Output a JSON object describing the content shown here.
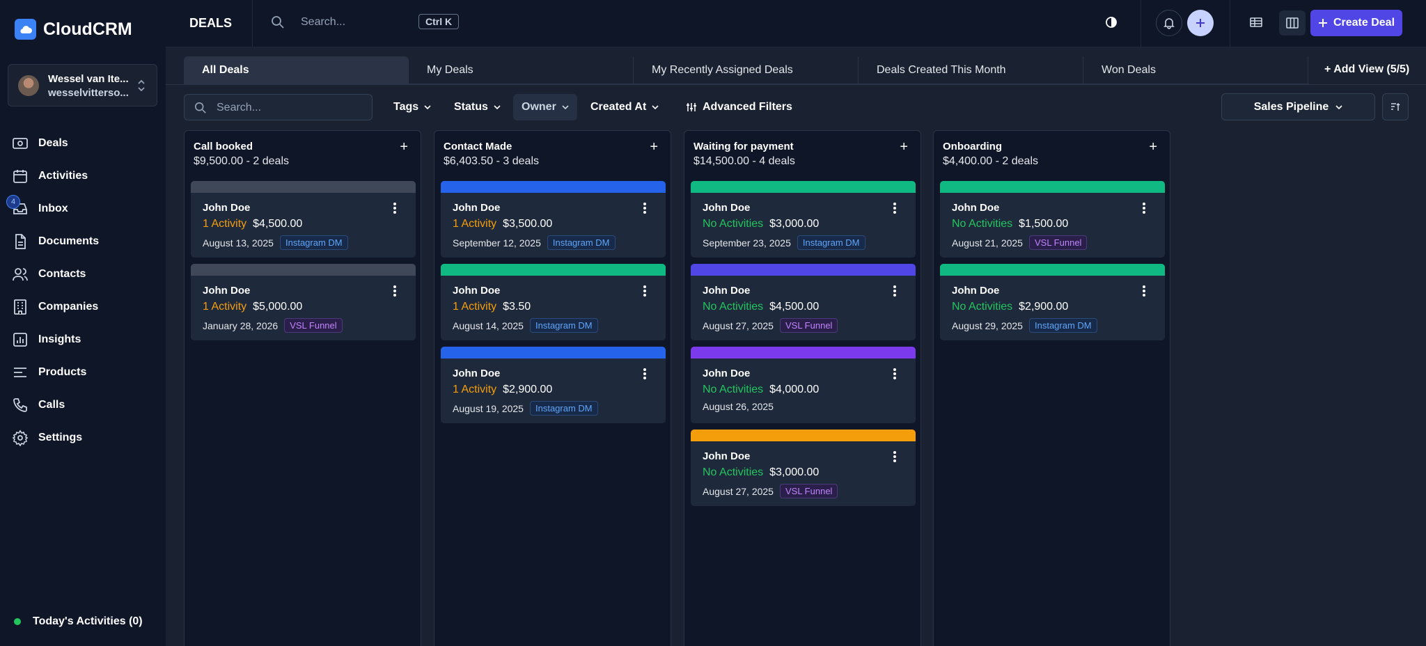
{
  "app": {
    "name": "CloudCRM"
  },
  "user": {
    "name": "Wessel van Ite...",
    "email": "wesselvitterso..."
  },
  "nav": [
    {
      "label": "Deals",
      "icon": "deals-icon"
    },
    {
      "label": "Activities",
      "icon": "calendar-icon"
    },
    {
      "label": "Inbox",
      "icon": "inbox-icon",
      "badge": "4"
    },
    {
      "label": "Documents",
      "icon": "document-icon"
    },
    {
      "label": "Contacts",
      "icon": "contacts-icon"
    },
    {
      "label": "Companies",
      "icon": "building-icon"
    },
    {
      "label": "Insights",
      "icon": "chart-icon"
    },
    {
      "label": "Products",
      "icon": "list-icon"
    },
    {
      "label": "Calls",
      "icon": "phone-icon"
    },
    {
      "label": "Settings",
      "icon": "gear-icon"
    }
  ],
  "today": {
    "label": "Today's Activities (0)"
  },
  "header": {
    "title": "DEALS",
    "search_placeholder": "Search...",
    "shortcut": "Ctrl K",
    "create_label": "Create Deal"
  },
  "tabs": [
    "All Deals",
    "My Deals",
    "My Recently Assigned Deals",
    "Deals Created This Month",
    "Won Deals"
  ],
  "add_view": "+ Add View (5/5)",
  "filters": {
    "search_placeholder": "Search...",
    "tags": "Tags",
    "status": "Status",
    "owner": "Owner",
    "created_at": "Created At",
    "advanced": "Advanced Filters",
    "pipeline": "Sales Pipeline"
  },
  "colors": {
    "accent": "#4f46e5",
    "blue": "#2563eb",
    "green": "#10b981",
    "indigo": "#4f46e5",
    "purple": "#7c3aed",
    "amber": "#f59e0b",
    "gray": "#3f4858"
  },
  "columns": [
    {
      "title": "Call booked",
      "summary": "$9,500.00 - 2 deals",
      "cards": [
        {
          "name": "John Doe",
          "activity": "1 Activity",
          "activity_type": "orange",
          "amount": "$4,500.00",
          "date": "August 13, 2025",
          "tag": "Instagram DM",
          "tag_type": "insta",
          "bar": "#3f4858"
        },
        {
          "name": "John Doe",
          "activity": "1 Activity",
          "activity_type": "orange",
          "amount": "$5,000.00",
          "date": "January 28, 2026",
          "tag": "VSL Funnel",
          "tag_type": "vsl",
          "bar": "#3f4858"
        }
      ]
    },
    {
      "title": "Contact Made",
      "summary": "$6,403.50 - 3 deals",
      "cards": [
        {
          "name": "John Doe",
          "activity": "1 Activity",
          "activity_type": "orange",
          "amount": "$3,500.00",
          "date": "September 12, 2025",
          "tag": "Instagram DM",
          "tag_type": "insta",
          "bar": "#2563eb"
        },
        {
          "name": "John Doe",
          "activity": "1 Activity",
          "activity_type": "orange",
          "amount": "$3.50",
          "date": "August 14, 2025",
          "tag": "Instagram DM",
          "tag_type": "insta",
          "bar": "#10b981"
        },
        {
          "name": "John Doe",
          "activity": "1 Activity",
          "activity_type": "orange",
          "amount": "$2,900.00",
          "date": "August 19, 2025",
          "tag": "Instagram DM",
          "tag_type": "insta",
          "bar": "#2563eb"
        }
      ]
    },
    {
      "title": "Waiting for payment",
      "summary": "$14,500.00 - 4 deals",
      "cards": [
        {
          "name": "John Doe",
          "activity": "No Activities",
          "activity_type": "green",
          "amount": "$3,000.00",
          "date": "September 23, 2025",
          "tag": "Instagram DM",
          "tag_type": "insta",
          "bar": "#10b981"
        },
        {
          "name": "John Doe",
          "activity": "No Activities",
          "activity_type": "green",
          "amount": "$4,500.00",
          "date": "August 27, 2025",
          "tag": "VSL Funnel",
          "tag_type": "vsl",
          "bar": "#4f46e5"
        },
        {
          "name": "John Doe",
          "activity": "No Activities",
          "activity_type": "green",
          "amount": "$4,000.00",
          "date": "August 26, 2025",
          "tag": "",
          "tag_type": "",
          "bar": "#7c3aed"
        },
        {
          "name": "John Doe",
          "activity": "No Activities",
          "activity_type": "green",
          "amount": "$3,000.00",
          "date": "August 27, 2025",
          "tag": "VSL Funnel",
          "tag_type": "vsl",
          "bar": "#f59e0b"
        }
      ]
    },
    {
      "title": "Onboarding",
      "summary": "$4,400.00 - 2 deals",
      "cards": [
        {
          "name": "John Doe",
          "activity": "No Activities",
          "activity_type": "green",
          "amount": "$1,500.00",
          "date": "August 21, 2025",
          "tag": "VSL Funnel",
          "tag_type": "vsl",
          "bar": "#10b981"
        },
        {
          "name": "John Doe",
          "activity": "No Activities",
          "activity_type": "green",
          "amount": "$2,900.00",
          "date": "August 29, 2025",
          "tag": "Instagram DM",
          "tag_type": "insta",
          "bar": "#10b981"
        }
      ]
    }
  ]
}
